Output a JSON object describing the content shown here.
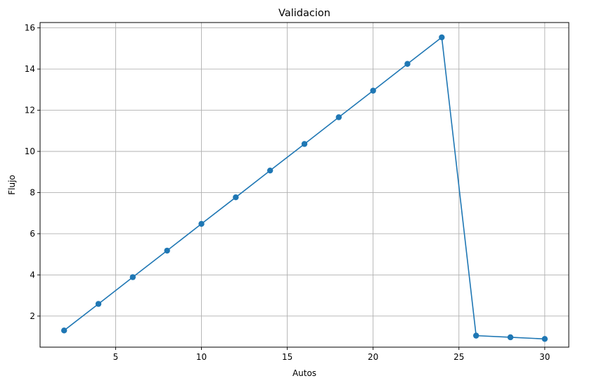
{
  "chart_data": {
    "type": "line",
    "title": "Validacion",
    "xlabel": "Autos",
    "ylabel": "Flujo",
    "xlim": [
      0.6,
      31.4
    ],
    "ylim": [
      0.49,
      16.26
    ],
    "xticks": [
      5,
      10,
      15,
      20,
      25,
      30
    ],
    "yticks": [
      2,
      4,
      6,
      8,
      10,
      12,
      14,
      16
    ],
    "grid": true,
    "legend": "none",
    "marker": "circle",
    "color": "#1f77b4",
    "series": [
      {
        "x": [
          2,
          4,
          6,
          8,
          10,
          12,
          14,
          16,
          18,
          20,
          22,
          24,
          26,
          28,
          30
        ],
        "y": [
          1.3,
          2.59,
          3.89,
          5.18,
          6.48,
          7.77,
          9.07,
          10.36,
          11.66,
          12.95,
          14.25,
          15.54,
          1.05,
          0.97,
          0.89
        ]
      }
    ]
  }
}
